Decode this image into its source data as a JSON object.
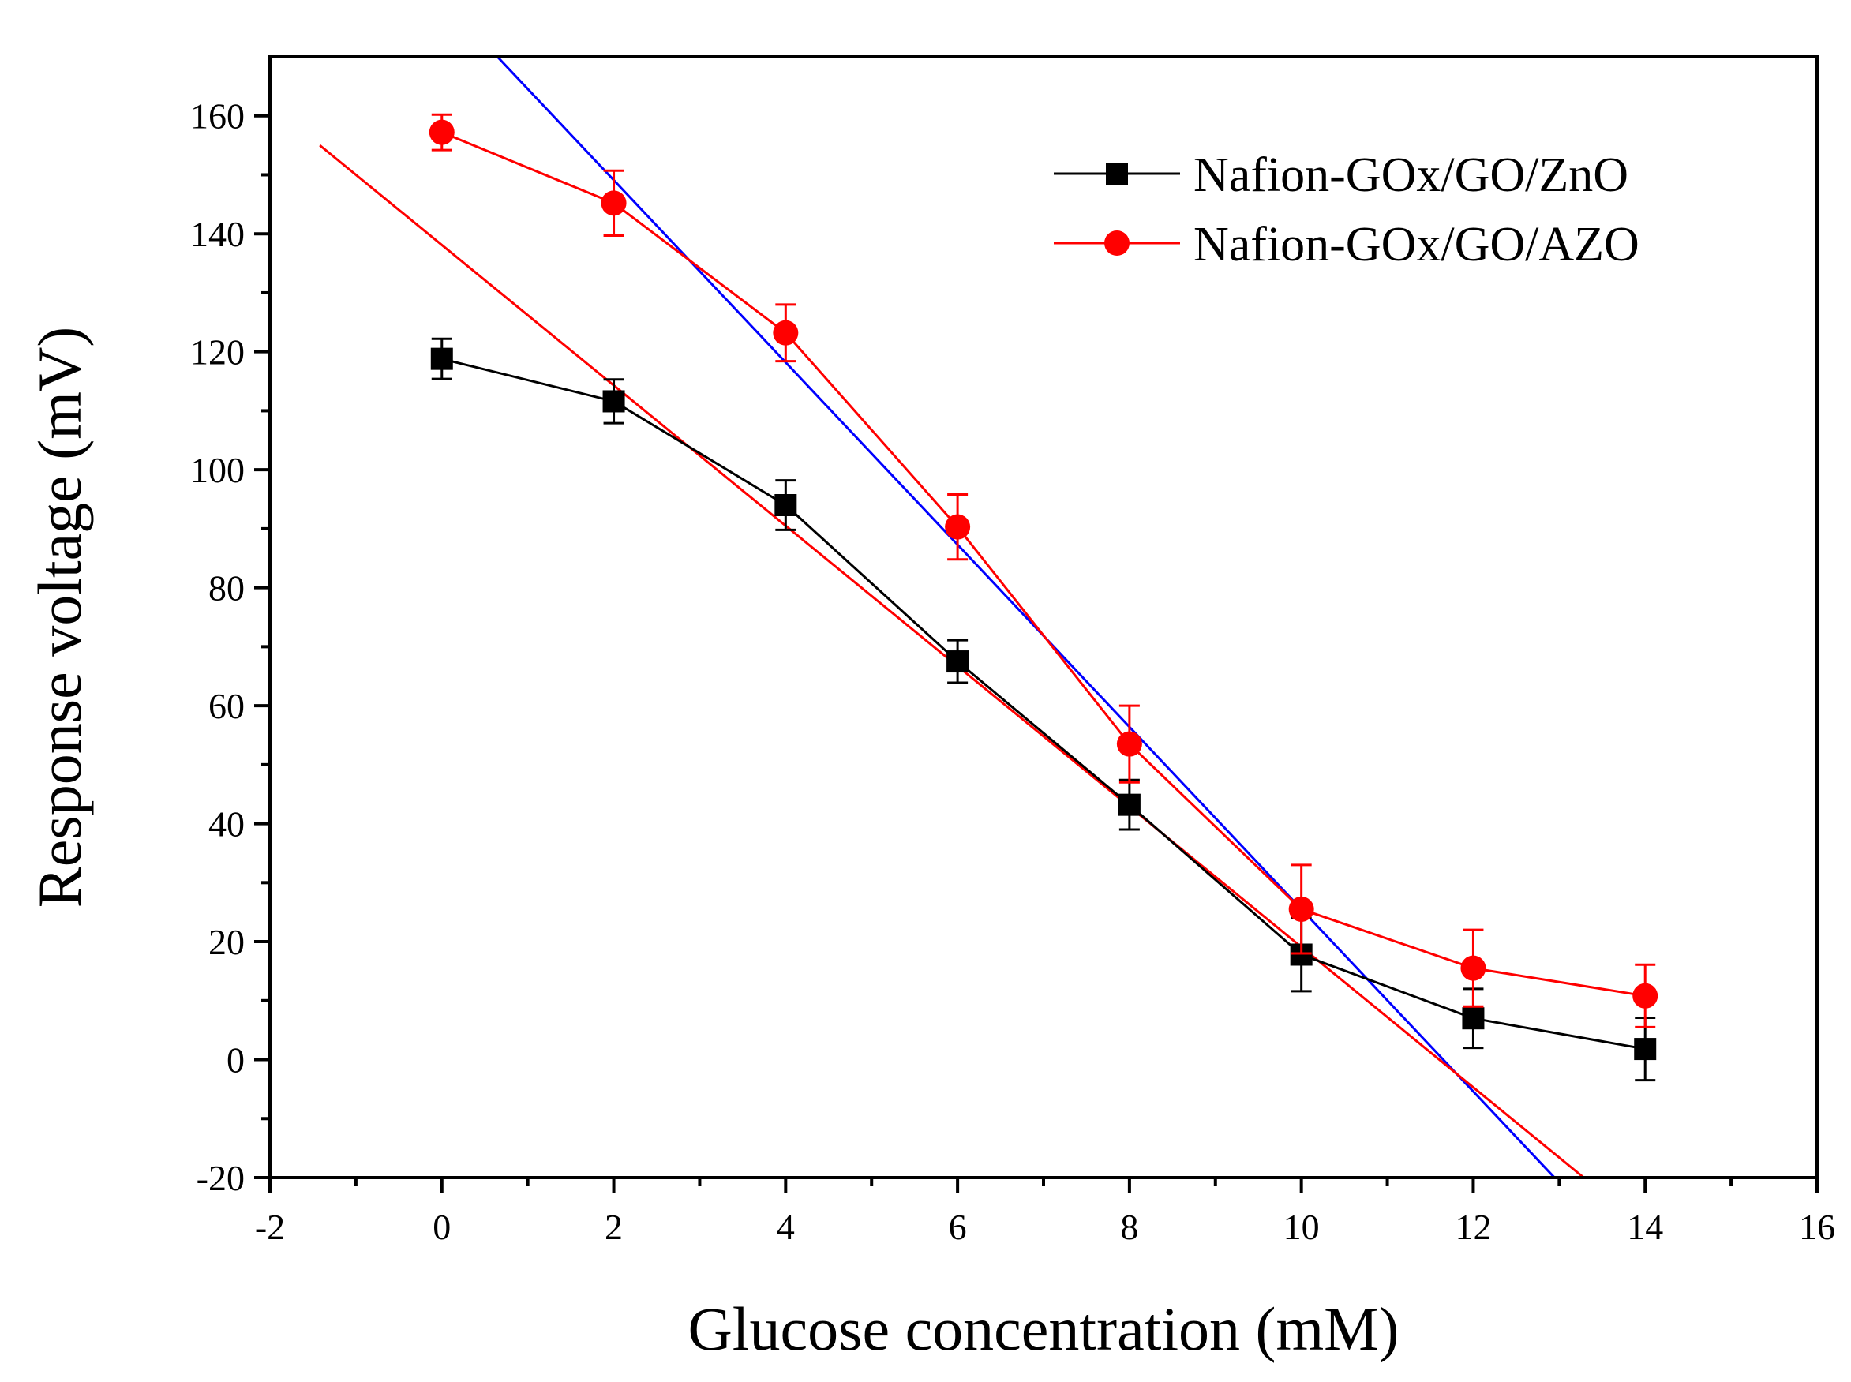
{
  "chart_data": {
    "type": "line",
    "title": "",
    "xlabel": "Glucose concentration (mM)",
    "ylabel": "Response voltage (mV)",
    "xlim": [
      -2,
      16
    ],
    "ylim": [
      -20,
      170
    ],
    "xticks": [
      -2,
      0,
      2,
      4,
      6,
      8,
      10,
      12,
      14,
      16
    ],
    "yticks": [
      -20,
      0,
      20,
      40,
      60,
      80,
      100,
      120,
      140,
      160
    ],
    "xtick_labels": [
      "-2",
      "0",
      "2",
      "4",
      "6",
      "8",
      "10",
      "12",
      "14",
      "16"
    ],
    "ytick_labels": [
      "-20",
      "0",
      "20",
      "40",
      "60",
      "80",
      "100",
      "120",
      "140",
      "160"
    ],
    "grid": false,
    "legend_position": "top-right",
    "x": [
      0,
      2,
      4,
      6,
      8,
      10,
      12,
      14
    ],
    "series": [
      {
        "name": "Nafion-GOx/GO/ZnO",
        "color": "#000000",
        "marker": "square",
        "values": [
          118.8,
          111.6,
          94.0,
          67.5,
          43.2,
          17.8,
          7.0,
          1.8
        ],
        "errors": [
          3.4,
          3.7,
          4.2,
          3.6,
          4.2,
          6.2,
          5.0,
          5.3
        ]
      },
      {
        "name": "Nafion-GOx/GO/AZO",
        "color": "#ff0000",
        "marker": "circle",
        "values": [
          157.2,
          145.2,
          123.2,
          90.3,
          53.5,
          25.5,
          15.5,
          10.8
        ],
        "errors": [
          3.0,
          5.5,
          4.8,
          5.5,
          6.5,
          7.5,
          6.5,
          5.3
        ]
      }
    ],
    "fit_lines": [
      {
        "color": "#0000ff",
        "slope": -15.45,
        "intercept": 180.0,
        "x_range": [
          0.65,
          12.94
        ]
      },
      {
        "color": "#ff0000",
        "slope": -11.9,
        "intercept": 138.1,
        "x_range": [
          -1.42,
          13.28
        ]
      }
    ]
  }
}
